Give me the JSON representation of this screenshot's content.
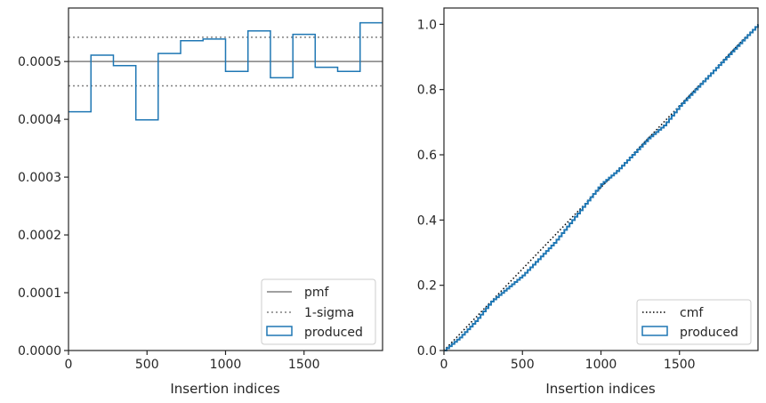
{
  "chart_data": [
    {
      "type": "line",
      "panel": "left",
      "title": "",
      "xlabel": "Insertion indices",
      "ylabel": "",
      "xlim": [
        0,
        2000
      ],
      "ylim": [
        0,
        0.0005926
      ],
      "xticks": [
        0,
        500,
        1000,
        1500
      ],
      "xtick_labels": [
        "0",
        "500",
        "1000",
        "1500"
      ],
      "yticks": [
        0,
        0.0001,
        0.0002,
        0.0003,
        0.0004,
        0.0005
      ],
      "ytick_labels": [
        "0.0000",
        "0.0001",
        "0.0002",
        "0.0003",
        "0.0004",
        "0.0005"
      ],
      "grid": false,
      "legend_position": "lower right",
      "reference_lines": {
        "pmf": 0.0005,
        "sigma_upper": 0.000542,
        "sigma_lower": 0.000458
      },
      "hist_edges": [
        0,
        143,
        286,
        429,
        571,
        714,
        857,
        1000,
        1143,
        1286,
        1429,
        1571,
        1714,
        1857,
        2000
      ],
      "hist_values": [
        0.000413,
        0.000511,
        0.000493,
        0.000399,
        0.000514,
        0.000536,
        0.000539,
        0.000483,
        0.000553,
        0.000472,
        0.000547,
        0.00049,
        0.000483,
        0.000567
      ],
      "series": [
        {
          "name": "pmf",
          "color": "#808080",
          "style": "solid"
        },
        {
          "name": "1-sigma",
          "color": "#808080",
          "style": "dotted"
        },
        {
          "name": "produced",
          "color": "#1f77b4",
          "style": "step"
        }
      ]
    },
    {
      "type": "line",
      "panel": "right",
      "title": "",
      "xlabel": "Insertion indices",
      "ylabel": "",
      "xlim": [
        0,
        2000
      ],
      "ylim": [
        0,
        1.05
      ],
      "xticks": [
        0,
        500,
        1000,
        1500
      ],
      "xtick_labels": [
        "0",
        "500",
        "1000",
        "1500"
      ],
      "yticks": [
        0,
        0.2,
        0.4,
        0.6,
        0.8,
        1.0
      ],
      "ytick_labels": [
        "0.0",
        "0.2",
        "0.4",
        "0.6",
        "0.8",
        "1.0"
      ],
      "grid": false,
      "legend_position": "lower right",
      "cmf_x": [
        0,
        2000
      ],
      "cmf_y": [
        0,
        1.0
      ],
      "produced_x": [
        0,
        100,
        200,
        300,
        400,
        500,
        600,
        700,
        800,
        900,
        1000,
        1100,
        1200,
        1300,
        1400,
        1500,
        1600,
        1700,
        1800,
        1900,
        2000
      ],
      "produced_y": [
        0,
        0.04,
        0.09,
        0.15,
        0.19,
        0.23,
        0.28,
        0.33,
        0.39,
        0.45,
        0.51,
        0.55,
        0.6,
        0.65,
        0.69,
        0.75,
        0.8,
        0.85,
        0.9,
        0.95,
        1.0
      ],
      "series": [
        {
          "name": "cmf",
          "color": "#000000",
          "style": "dotted"
        },
        {
          "name": "produced",
          "color": "#1f77b4",
          "style": "step"
        }
      ]
    }
  ]
}
